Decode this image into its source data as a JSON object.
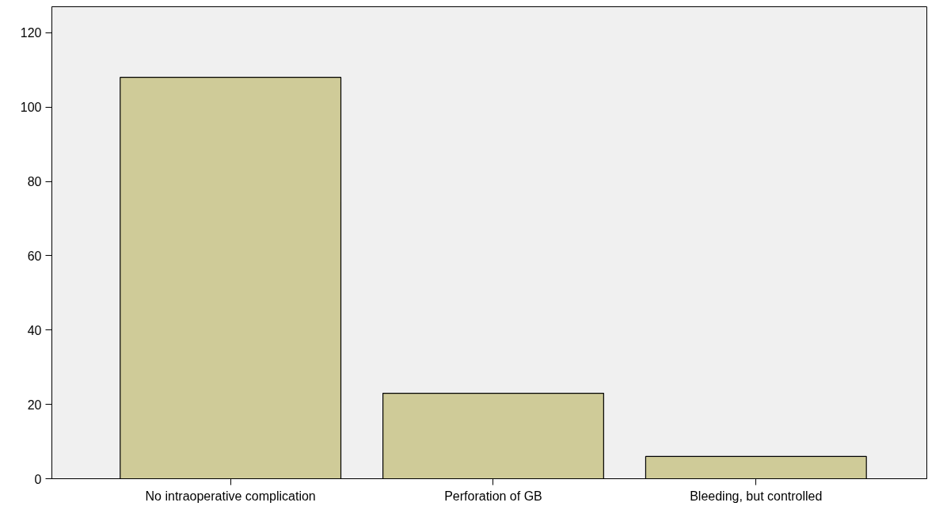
{
  "chart_data": {
    "type": "bar",
    "categories": [
      "No intraoperative complication",
      "Perforation of GB",
      "Bleeding, but controlled"
    ],
    "values": [
      108,
      23,
      6
    ],
    "color": "#cfcb98",
    "ylim": [
      0,
      127
    ],
    "yticks": [
      0,
      20,
      40,
      60,
      80,
      100,
      120
    ],
    "grid": false
  }
}
